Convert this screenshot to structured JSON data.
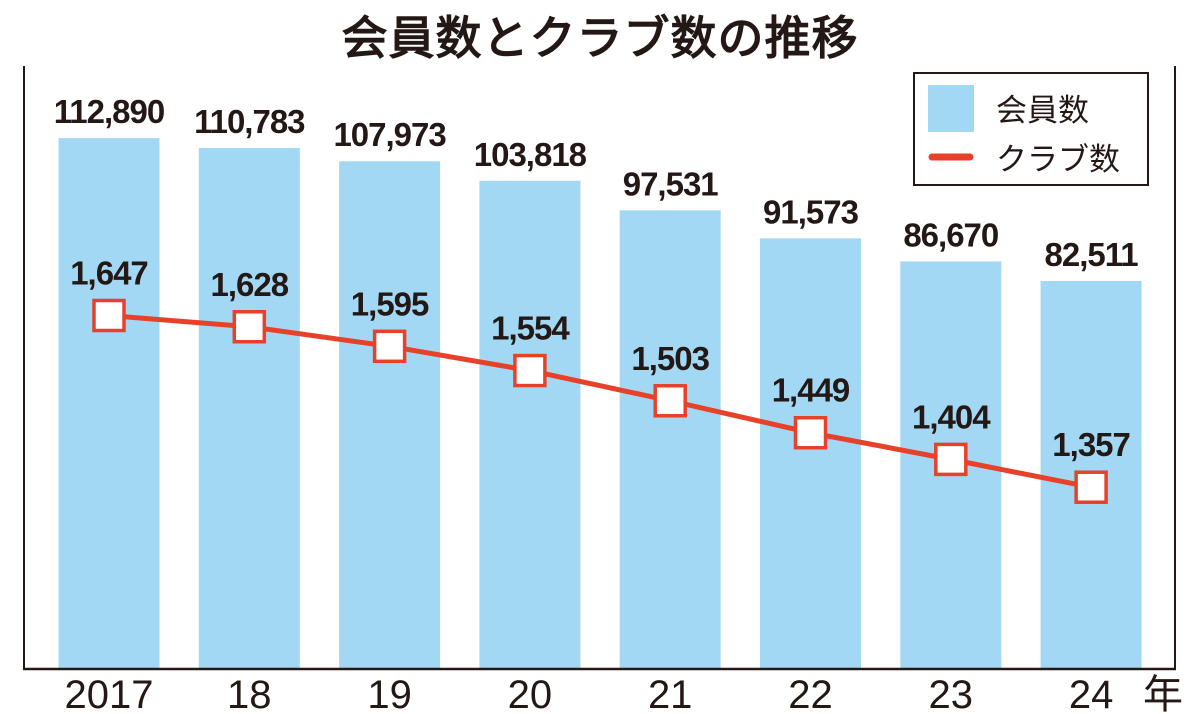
{
  "chart_data": {
    "type": "bar",
    "title": "会員数とクラブ数の推移",
    "categories": [
      "2017",
      "18",
      "19",
      "20",
      "21",
      "22",
      "23",
      "24"
    ],
    "x_unit": "年",
    "series": [
      {
        "name": "会員数",
        "type": "bar",
        "color": "#a3d8f4",
        "values": [
          112890,
          110783,
          107973,
          103818,
          97531,
          91573,
          86670,
          82511
        ],
        "labels": [
          "112,890",
          "110,783",
          "107,973",
          "103,818",
          "97,531",
          "91,573",
          "86,670",
          "82,511"
        ]
      },
      {
        "name": "クラブ数",
        "type": "line",
        "color": "#e8412a",
        "marker": "square",
        "values": [
          1647,
          1628,
          1595,
          1554,
          1503,
          1449,
          1404,
          1357
        ],
        "labels": [
          "1,647",
          "1,628",
          "1,595",
          "1,554",
          "1,503",
          "1,449",
          "1,404",
          "1,357"
        ]
      }
    ],
    "ylim": [
      0,
      127800
    ],
    "y2lim": [
      1050,
      2065
    ],
    "grid": false,
    "axes_ticks_shown": false,
    "legend": "top-right"
  }
}
